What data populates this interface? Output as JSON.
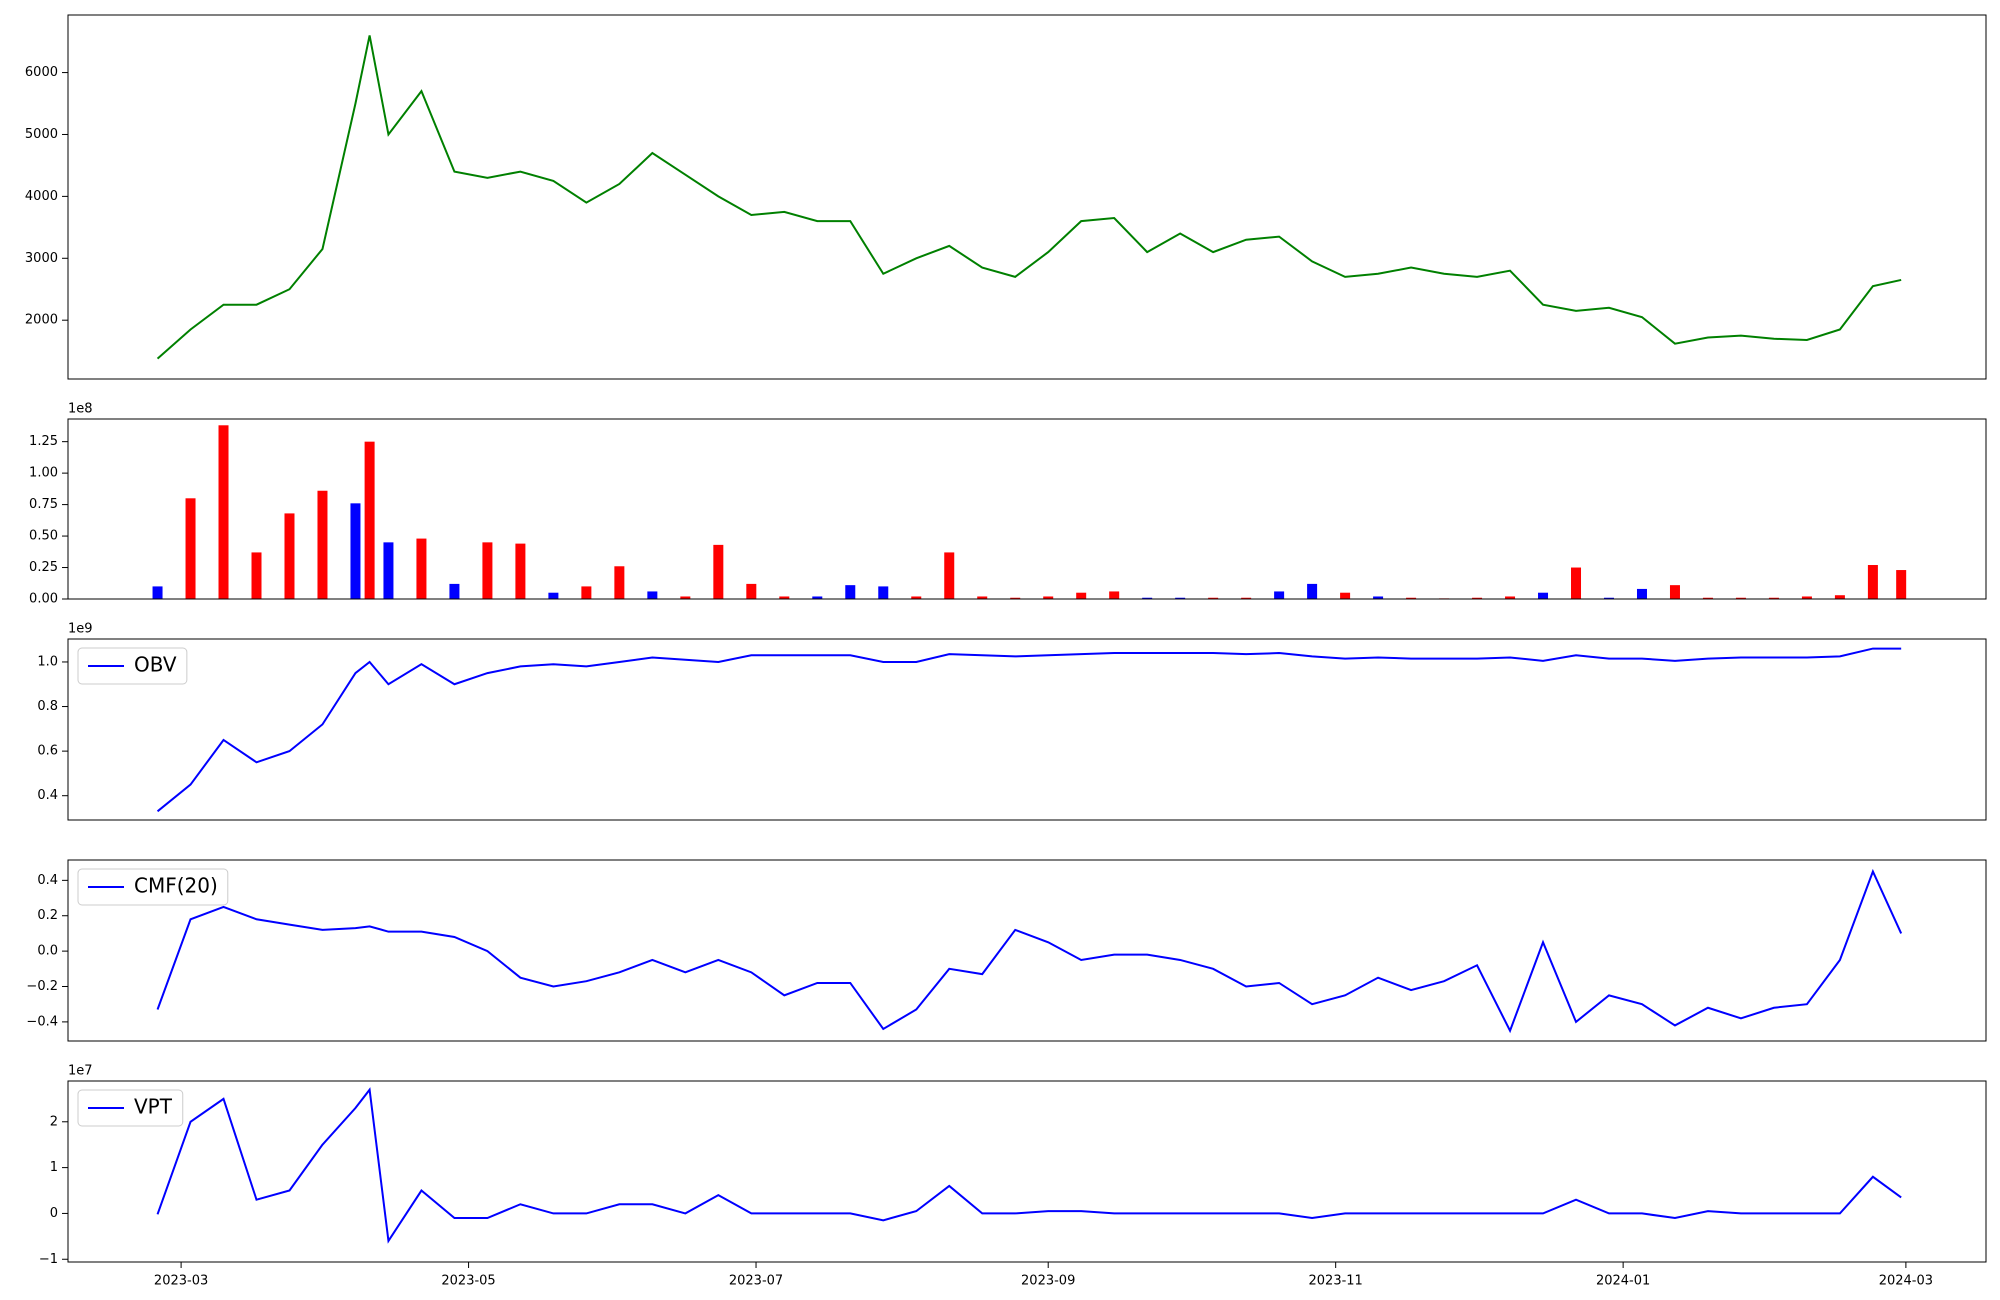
{
  "chart_data": [
    {
      "type": "line",
      "x": [
        "2023-02-24",
        "2023-03-03",
        "2023-03-10",
        "2023-03-17",
        "2023-03-24",
        "2023-03-31",
        "2023-04-07",
        "2023-04-10",
        "2023-04-14",
        "2023-04-21",
        "2023-04-28",
        "2023-05-05",
        "2023-05-12",
        "2023-05-19",
        "2023-05-26",
        "2023-06-02",
        "2023-06-09",
        "2023-06-16",
        "2023-06-23",
        "2023-06-30",
        "2023-07-07",
        "2023-07-14",
        "2023-07-21",
        "2023-07-28",
        "2023-08-04",
        "2023-08-11",
        "2023-08-18",
        "2023-08-25",
        "2023-09-01",
        "2023-09-08",
        "2023-09-15",
        "2023-09-22",
        "2023-09-29",
        "2023-10-06",
        "2023-10-13",
        "2023-10-20",
        "2023-10-27",
        "2023-11-03",
        "2023-11-10",
        "2023-11-17",
        "2023-11-24",
        "2023-12-01",
        "2023-12-08",
        "2023-12-15",
        "2023-12-22",
        "2023-12-29",
        "2024-01-05",
        "2024-01-12",
        "2024-01-19",
        "2024-01-26",
        "2024-02-02",
        "2024-02-09",
        "2024-02-16",
        "2024-02-23",
        "2024-02-29"
      ],
      "xlim": [
        "2023-02-05",
        "2024-03-18"
      ],
      "ylim": [
        1050,
        6930
      ],
      "yticks": [
        2000,
        3000,
        4000,
        5000,
        6000
      ],
      "series": [
        {
          "color": "green",
          "values": [
            1380,
            1850,
            2250,
            2250,
            2500,
            3150,
            5500,
            6600,
            5000,
            5700,
            4400,
            4300,
            4400,
            4250,
            3900,
            4200,
            4700,
            4350,
            4000,
            3700,
            3750,
            3600,
            3600,
            2750,
            3000,
            3200,
            2850,
            2700,
            3100,
            3600,
            3650,
            3100,
            3400,
            3100,
            3300,
            3350,
            2950,
            2700,
            2750,
            2850,
            2750,
            2700,
            2800,
            2250,
            2150,
            2200,
            2050,
            1620,
            1720,
            1750,
            1700,
            1680,
            1850,
            2550,
            2650
          ]
        }
      ]
    },
    {
      "type": "bar",
      "x": [
        "2023-02-24",
        "2023-03-03",
        "2023-03-10",
        "2023-03-17",
        "2023-03-24",
        "2023-03-31",
        "2023-04-07",
        "2023-04-10",
        "2023-04-14",
        "2023-04-21",
        "2023-04-28",
        "2023-05-05",
        "2023-05-12",
        "2023-05-19",
        "2023-05-26",
        "2023-06-02",
        "2023-06-09",
        "2023-06-16",
        "2023-06-23",
        "2023-06-30",
        "2023-07-07",
        "2023-07-14",
        "2023-07-21",
        "2023-07-28",
        "2023-08-04",
        "2023-08-11",
        "2023-08-18",
        "2023-08-25",
        "2023-09-01",
        "2023-09-08",
        "2023-09-15",
        "2023-09-22",
        "2023-09-29",
        "2023-10-06",
        "2023-10-13",
        "2023-10-20",
        "2023-10-27",
        "2023-11-03",
        "2023-11-10",
        "2023-11-17",
        "2023-11-24",
        "2023-12-01",
        "2023-12-08",
        "2023-12-15",
        "2023-12-22",
        "2023-12-29",
        "2024-01-05",
        "2024-01-12",
        "2024-01-19",
        "2024-01-26",
        "2024-02-02",
        "2024-02-09",
        "2024-02-16",
        "2024-02-23",
        "2024-02-29"
      ],
      "xlim": [
        "2023-02-05",
        "2024-03-18"
      ],
      "ylim": [
        0,
        143000000
      ],
      "yticks": [
        {
          "value": 0,
          "label": "0.00"
        },
        {
          "value": 25000000,
          "label": "0.25"
        },
        {
          "value": 50000000,
          "label": "0.50"
        },
        {
          "value": 75000000,
          "label": "0.75"
        },
        {
          "value": 100000000,
          "label": "1.00"
        },
        {
          "value": 125000000,
          "label": "1.25"
        }
      ],
      "y_offset_label": "1e8",
      "values": [
        10000000,
        80000000,
        138000000,
        37000000,
        68000000,
        86000000,
        76000000,
        125000000,
        45000000,
        48000000,
        12000000,
        45000000,
        44000000,
        5000000,
        10000000,
        26000000,
        6000000,
        2000000,
        43000000,
        12000000,
        2000000,
        2000000,
        11000000,
        10000000,
        2000000,
        37000000,
        2000000,
        1000000,
        2000000,
        5000000,
        6000000,
        1000000,
        1000000,
        1000000,
        1000000,
        6000000,
        12000000,
        5000000,
        2000000,
        1000000,
        500000,
        1000000,
        2000000,
        5000000,
        25000000,
        1000000,
        8000000,
        11000000,
        1000000,
        1000000,
        1000000,
        2000000,
        3000000,
        27000000,
        23000000
      ],
      "colors": [
        "blue",
        "red",
        "red",
        "red",
        "red",
        "red",
        "blue",
        "red",
        "blue",
        "red",
        "blue",
        "red",
        "red",
        "blue",
        "red",
        "red",
        "blue",
        "red",
        "red",
        "red",
        "red",
        "blue",
        "blue",
        "blue",
        "red",
        "red",
        "red",
        "red",
        "red",
        "red",
        "red",
        "blue",
        "blue",
        "red",
        "red",
        "blue",
        "blue",
        "red",
        "blue",
        "red",
        "red",
        "red",
        "red",
        "blue",
        "red",
        "blue",
        "blue",
        "red",
        "red",
        "red",
        "red",
        "red",
        "red",
        "red",
        "red"
      ]
    },
    {
      "type": "line",
      "x": [
        "2023-02-24",
        "2023-03-03",
        "2023-03-10",
        "2023-03-17",
        "2023-03-24",
        "2023-03-31",
        "2023-04-07",
        "2023-04-10",
        "2023-04-14",
        "2023-04-21",
        "2023-04-28",
        "2023-05-05",
        "2023-05-12",
        "2023-05-19",
        "2023-05-26",
        "2023-06-02",
        "2023-06-09",
        "2023-06-16",
        "2023-06-23",
        "2023-06-30",
        "2023-07-07",
        "2023-07-14",
        "2023-07-21",
        "2023-07-28",
        "2023-08-04",
        "2023-08-11",
        "2023-08-18",
        "2023-08-25",
        "2023-09-01",
        "2023-09-08",
        "2023-09-15",
        "2023-09-22",
        "2023-09-29",
        "2023-10-06",
        "2023-10-13",
        "2023-10-20",
        "2023-10-27",
        "2023-11-03",
        "2023-11-10",
        "2023-11-17",
        "2023-11-24",
        "2023-12-01",
        "2023-12-08",
        "2023-12-15",
        "2023-12-22",
        "2023-12-29",
        "2024-01-05",
        "2024-01-12",
        "2024-01-19",
        "2024-01-26",
        "2024-02-02",
        "2024-02-09",
        "2024-02-16",
        "2024-02-23",
        "2024-02-29"
      ],
      "xlim": [
        "2023-02-05",
        "2024-03-18"
      ],
      "ylim": [
        291000000,
        1103000000
      ],
      "yticks": [
        {
          "value": 400000000,
          "label": "0.4"
        },
        {
          "value": 600000000,
          "label": "0.6"
        },
        {
          "value": 800000000,
          "label": "0.8"
        },
        {
          "value": 1000000000,
          "label": "1.0"
        }
      ],
      "y_offset_label": "1e9",
      "series": [
        {
          "name": "OBV",
          "color": "blue",
          "values": [
            330000000,
            450000000,
            650000000,
            550000000,
            600000000,
            720000000,
            950000000,
            1000000000,
            900000000,
            990000000,
            900000000,
            950000000,
            980000000,
            990000000,
            980000000,
            1000000000,
            1020000000,
            1010000000,
            1000000000,
            1030000000,
            1030000000,
            1030000000,
            1030000000,
            1000000000,
            1000000000,
            1035000000,
            1030000000,
            1025000000,
            1030000000,
            1035000000,
            1040000000,
            1040000000,
            1040000000,
            1040000000,
            1035000000,
            1040000000,
            1025000000,
            1015000000,
            1020000000,
            1015000000,
            1015000000,
            1015000000,
            1020000000,
            1005000000,
            1030000000,
            1015000000,
            1015000000,
            1005000000,
            1015000000,
            1020000000,
            1020000000,
            1020000000,
            1025000000,
            1060000000,
            1060000000
          ]
        }
      ]
    },
    {
      "type": "line",
      "x": [
        "2023-02-24",
        "2023-03-03",
        "2023-03-10",
        "2023-03-17",
        "2023-03-24",
        "2023-03-31",
        "2023-04-07",
        "2023-04-10",
        "2023-04-14",
        "2023-04-21",
        "2023-04-28",
        "2023-05-05",
        "2023-05-12",
        "2023-05-19",
        "2023-05-26",
        "2023-06-02",
        "2023-06-09",
        "2023-06-16",
        "2023-06-23",
        "2023-06-30",
        "2023-07-07",
        "2023-07-14",
        "2023-07-21",
        "2023-07-28",
        "2023-08-04",
        "2023-08-11",
        "2023-08-18",
        "2023-08-25",
        "2023-09-01",
        "2023-09-08",
        "2023-09-15",
        "2023-09-22",
        "2023-09-29",
        "2023-10-06",
        "2023-10-13",
        "2023-10-20",
        "2023-10-27",
        "2023-11-03",
        "2023-11-10",
        "2023-11-17",
        "2023-11-24",
        "2023-12-01",
        "2023-12-08",
        "2023-12-15",
        "2023-12-22",
        "2023-12-29",
        "2024-01-05",
        "2024-01-12",
        "2024-01-19",
        "2024-01-26",
        "2024-02-02",
        "2024-02-09",
        "2024-02-16",
        "2024-02-23",
        "2024-02-29"
      ],
      "xlim": [
        "2023-02-05",
        "2024-03-18"
      ],
      "ylim": [
        -0.508,
        0.515
      ],
      "yticks": [
        {
          "value": -0.4,
          "label": "−0.4"
        },
        {
          "value": -0.2,
          "label": "−0.2"
        },
        {
          "value": 0,
          "label": "0.0"
        },
        0.2,
        0.4
      ],
      "series": [
        {
          "name": "CMF(20)",
          "color": "blue",
          "values": [
            -0.33,
            0.18,
            0.25,
            0.18,
            0.15,
            0.12,
            0.13,
            0.14,
            0.11,
            0.11,
            0.08,
            0.0,
            -0.15,
            -0.2,
            -0.17,
            -0.12,
            -0.05,
            -0.12,
            -0.05,
            -0.12,
            -0.25,
            -0.18,
            -0.18,
            -0.44,
            -0.33,
            -0.1,
            -0.13,
            0.12,
            0.05,
            -0.05,
            -0.02,
            -0.02,
            -0.05,
            -0.1,
            -0.2,
            -0.18,
            -0.3,
            -0.25,
            -0.15,
            -0.22,
            -0.17,
            -0.08,
            -0.45,
            0.05,
            -0.4,
            -0.25,
            -0.3,
            -0.42,
            -0.32,
            -0.38,
            -0.32,
            -0.3,
            -0.05,
            0.45,
            0.1
          ]
        }
      ]
    },
    {
      "type": "line",
      "x": [
        "2023-02-24",
        "2023-03-03",
        "2023-03-10",
        "2023-03-17",
        "2023-03-24",
        "2023-03-31",
        "2023-04-07",
        "2023-04-10",
        "2023-04-14",
        "2023-04-21",
        "2023-04-28",
        "2023-05-05",
        "2023-05-12",
        "2023-05-19",
        "2023-05-26",
        "2023-06-02",
        "2023-06-09",
        "2023-06-16",
        "2023-06-23",
        "2023-06-30",
        "2023-07-07",
        "2023-07-14",
        "2023-07-21",
        "2023-07-28",
        "2023-08-04",
        "2023-08-11",
        "2023-08-18",
        "2023-08-25",
        "2023-09-01",
        "2023-09-08",
        "2023-09-15",
        "2023-09-22",
        "2023-09-29",
        "2023-10-06",
        "2023-10-13",
        "2023-10-20",
        "2023-10-27",
        "2023-11-03",
        "2023-11-10",
        "2023-11-17",
        "2023-11-24",
        "2023-12-01",
        "2023-12-08",
        "2023-12-15",
        "2023-12-22",
        "2023-12-29",
        "2024-01-05",
        "2024-01-12",
        "2024-01-19",
        "2024-01-26",
        "2024-02-02",
        "2024-02-09",
        "2024-02-16",
        "2024-02-23",
        "2024-02-29"
      ],
      "xlim": [
        "2023-02-05",
        "2024-03-18"
      ],
      "xticks": [
        {
          "value": "2023-03-01",
          "label": "2023-03"
        },
        {
          "value": "2023-05-01",
          "label": "2023-05"
        },
        {
          "value": "2023-07-01",
          "label": "2023-07"
        },
        {
          "value": "2023-09-01",
          "label": "2023-09"
        },
        {
          "value": "2023-11-01",
          "label": "2023-11"
        },
        {
          "value": "2024-01-01",
          "label": "2024-01"
        },
        {
          "value": "2024-03-01",
          "label": "2024-03"
        }
      ],
      "ylim": [
        -10600000,
        28900000
      ],
      "yticks": [
        {
          "value": -10000000,
          "label": "−1"
        },
        {
          "value": 0,
          "label": "0"
        },
        {
          "value": 10000000,
          "label": "1"
        },
        {
          "value": 20000000,
          "label": "2"
        }
      ],
      "y_offset_label": "1e7",
      "series": [
        {
          "name": "VPT",
          "color": "blue",
          "values": [
            -200000,
            20000000,
            25000000,
            3000000,
            5000000,
            15000000,
            23000000,
            27000000,
            -6000000,
            5000000,
            -1000000,
            -1000000,
            2000000,
            0,
            0,
            2000000,
            2000000,
            0,
            4000000,
            0,
            0,
            0,
            0,
            -1500000,
            500000,
            6000000,
            0,
            0,
            500000,
            500000,
            0,
            0,
            0,
            0,
            0,
            0,
            -1000000,
            0,
            0,
            0,
            0,
            0,
            0,
            0,
            3000000,
            0,
            0,
            -1000000,
            500000,
            0,
            0,
            0,
            0,
            8000000,
            3500000
          ]
        }
      ]
    }
  ]
}
